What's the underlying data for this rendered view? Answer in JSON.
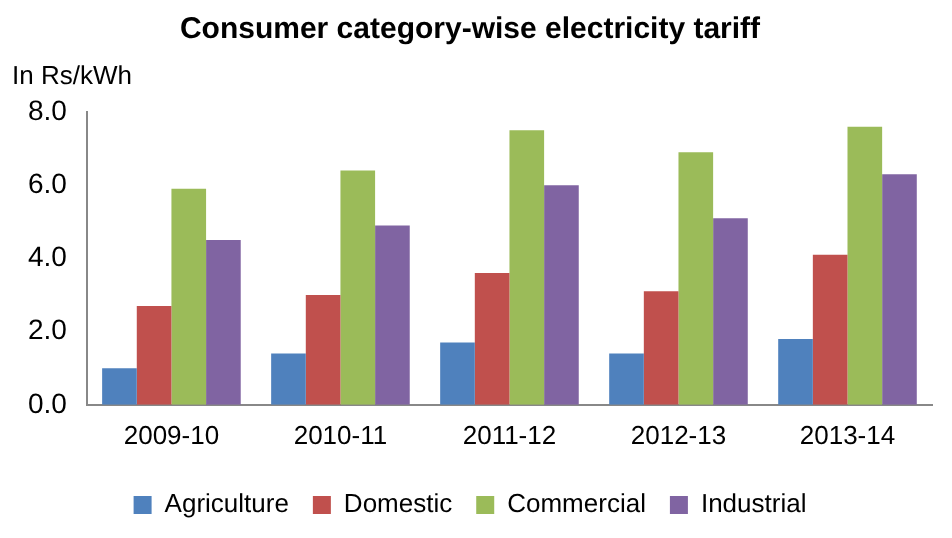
{
  "chart_data": {
    "type": "bar",
    "title": "Consumer category-wise electricity tariff",
    "ylabel": "In Rs/kWh",
    "categories": [
      "2009-10",
      "2010-11",
      "2011-12",
      "2012-13",
      "2013-14"
    ],
    "series": [
      {
        "name": "Agriculture",
        "color": "#4f81bd",
        "values": [
          1.0,
          1.4,
          1.7,
          1.4,
          1.8
        ]
      },
      {
        "name": "Domestic",
        "color": "#c0504d",
        "values": [
          2.7,
          3.0,
          3.6,
          3.1,
          4.1
        ]
      },
      {
        "name": "Commercial",
        "color": "#9bbb59",
        "values": [
          5.9,
          6.4,
          7.5,
          6.9,
          7.6
        ]
      },
      {
        "name": "Industrial",
        "color": "#8064a2",
        "values": [
          4.5,
          4.9,
          6.0,
          5.1,
          6.3
        ]
      }
    ],
    "ylim": [
      0,
      8
    ],
    "yticks": [
      {
        "value": 0,
        "label": "0.0"
      },
      {
        "value": 2,
        "label": "2.0"
      },
      {
        "value": 4,
        "label": "4.0"
      },
      {
        "value": 6,
        "label": "6.0"
      },
      {
        "value": 8,
        "label": "8.0"
      }
    ],
    "grid": false,
    "legend": "bottom"
  }
}
